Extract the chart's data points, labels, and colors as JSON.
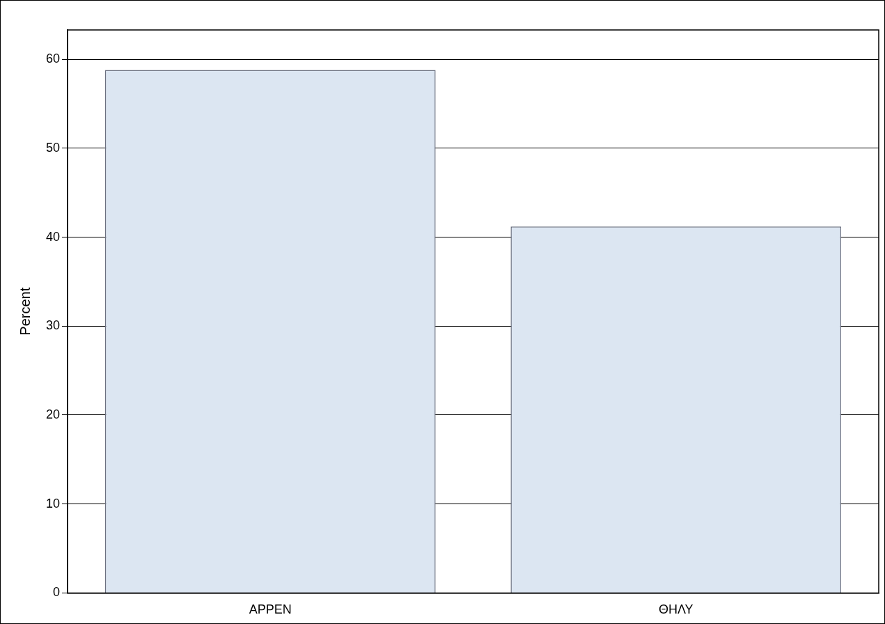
{
  "chart_data": {
    "type": "bar",
    "ylabel": "Percent",
    "categories": [
      "ΑΡΡΕΝ",
      "ΘΗΛΥ"
    ],
    "values": [
      58.8,
      41.2
    ],
    "color": "#dce6f2",
    "ylim": [
      0,
      63.3
    ],
    "yticks": [
      0,
      10,
      20,
      30,
      40,
      50,
      60
    ],
    "grid": "y"
  }
}
